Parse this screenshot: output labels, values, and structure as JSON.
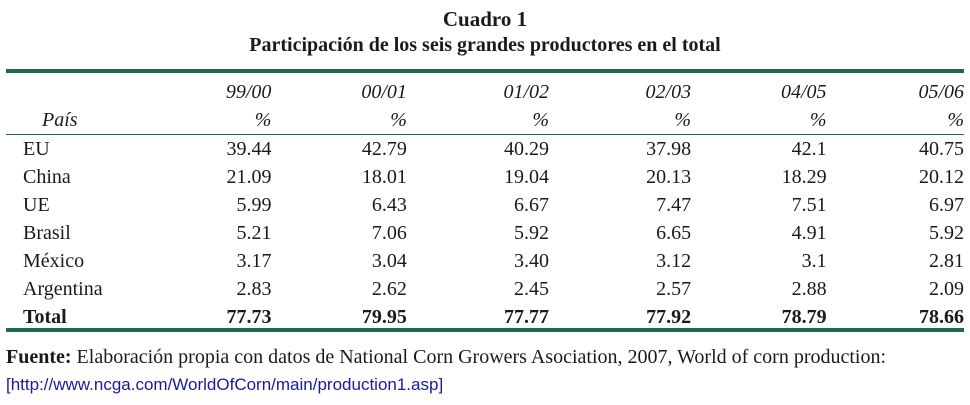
{
  "table": {
    "title": "Cuadro 1",
    "subtitle": "Participación de los seis grandes productores en el total",
    "country_header": "País",
    "periods": [
      "99/00",
      "00/01",
      "01/02",
      "02/03",
      "04/05",
      "05/06"
    ],
    "unit": "%",
    "rows": [
      {
        "country": "EU",
        "values": [
          "39.44",
          "42.79",
          "40.29",
          "37.98",
          "42.1",
          "40.75"
        ]
      },
      {
        "country": "China",
        "values": [
          "21.09",
          "18.01",
          "19.04",
          "20.13",
          "18.29",
          "20.12"
        ]
      },
      {
        "country": "UE",
        "values": [
          "5.99",
          "6.43",
          "6.67",
          "7.47",
          "7.51",
          "6.97"
        ]
      },
      {
        "country": "Brasil",
        "values": [
          "5.21",
          "7.06",
          "5.92",
          "6.65",
          "4.91",
          "5.92"
        ]
      },
      {
        "country": "México",
        "values": [
          "3.17",
          "3.04",
          "3.40",
          "3.12",
          "3.1",
          "2.81"
        ]
      },
      {
        "country": "Argentina",
        "values": [
          "2.83",
          "2.62",
          "2.45",
          "2.57",
          "2.88",
          "2.09"
        ]
      }
    ],
    "total": {
      "label": "Total",
      "values": [
        "77.73",
        "79.95",
        "77.77",
        "77.92",
        "78.79",
        "78.66"
      ]
    }
  },
  "footer": {
    "label": "Fuente:",
    "text": " Elaboración propia con datos de National Corn Growers Asociation, 2007, World of corn production: ",
    "link": "[http://www.ncga.com/WorldOfCorn/main/production1.asp]"
  },
  "colors": {
    "rule": "#1d6b4c",
    "link": "#1a1a9a"
  }
}
